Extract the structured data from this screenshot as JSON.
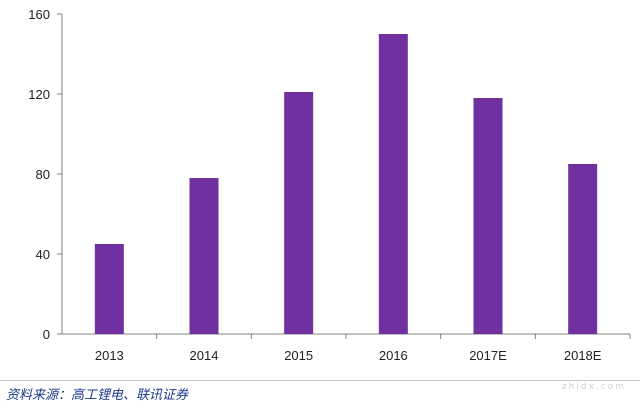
{
  "chart_data": {
    "type": "bar",
    "categories": [
      "2013",
      "2014",
      "2015",
      "2016",
      "2017E",
      "2018E"
    ],
    "values": [
      45,
      78,
      121,
      150,
      118,
      85
    ],
    "title": "",
    "xlabel": "",
    "ylabel": "",
    "ylim": [
      0,
      160
    ],
    "yticks": [
      "0",
      "40",
      "80",
      "120",
      "160"
    ],
    "grid": false,
    "legend": "none",
    "bar_color": "#7030a0"
  },
  "source_note": "资料来源：高工锂电、联讯证券",
  "watermark": "zhidx.com"
}
